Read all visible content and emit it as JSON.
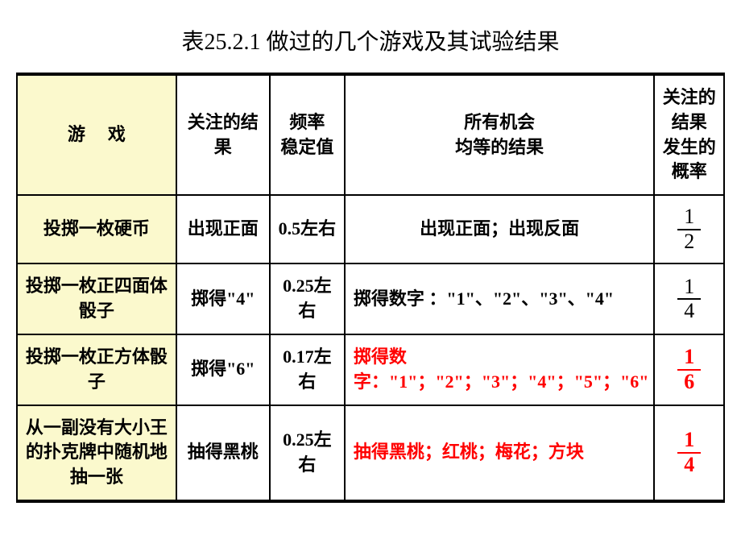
{
  "title": "表25.2.1 做过的几个游戏及其试验结果",
  "headers": {
    "game_label_a": "游",
    "game_label_b": "戏",
    "attention": "关注的结果",
    "freq_l1": "频率",
    "freq_l2": "稳定值",
    "all_l1": "所有机会",
    "all_l2": "均等的结果",
    "prob_l1": "关注的结果",
    "prob_l2": "发生的概率"
  },
  "rows": [
    {
      "game": "投掷一枚硬币",
      "attention": "出现正面",
      "freq": "0.5左右",
      "all": "出现正面；出现反面",
      "frac_num": "1",
      "frac_den": "2",
      "all_red": false,
      "prob_red": false
    },
    {
      "game": "投掷一枚正四面体骰子",
      "attention": "掷得\"4\"",
      "freq": "0.25左右",
      "all": "掷得数字 ：\"1\"、\"2\"、\"3\"、\"4\"",
      "frac_num": "1",
      "frac_den": "4",
      "all_red": false,
      "prob_red": false
    },
    {
      "game": "投掷一枚正方体骰子",
      "attention": "掷得\"6\"",
      "freq": "0.17左右",
      "all": "掷得数字：\"1\"；\"2\"；\"3\"；\"4\"；\"5\"；\"6\"",
      "frac_num": "1",
      "frac_den": "6",
      "all_red": true,
      "prob_red": true
    },
    {
      "game": "从一副没有大小王的扑克牌中随机地抽一张",
      "attention": "抽得黑桃",
      "freq": "0.25左右",
      "all": "抽得黑桃；红桃；梅花；方块",
      "frac_num": "1",
      "frac_den": "4",
      "all_red": true,
      "prob_red": true
    }
  ],
  "colors": {
    "header_bg": "#fbf9cd",
    "red_text": "#ff0000",
    "border": "#000000",
    "background": "#ffffff"
  }
}
